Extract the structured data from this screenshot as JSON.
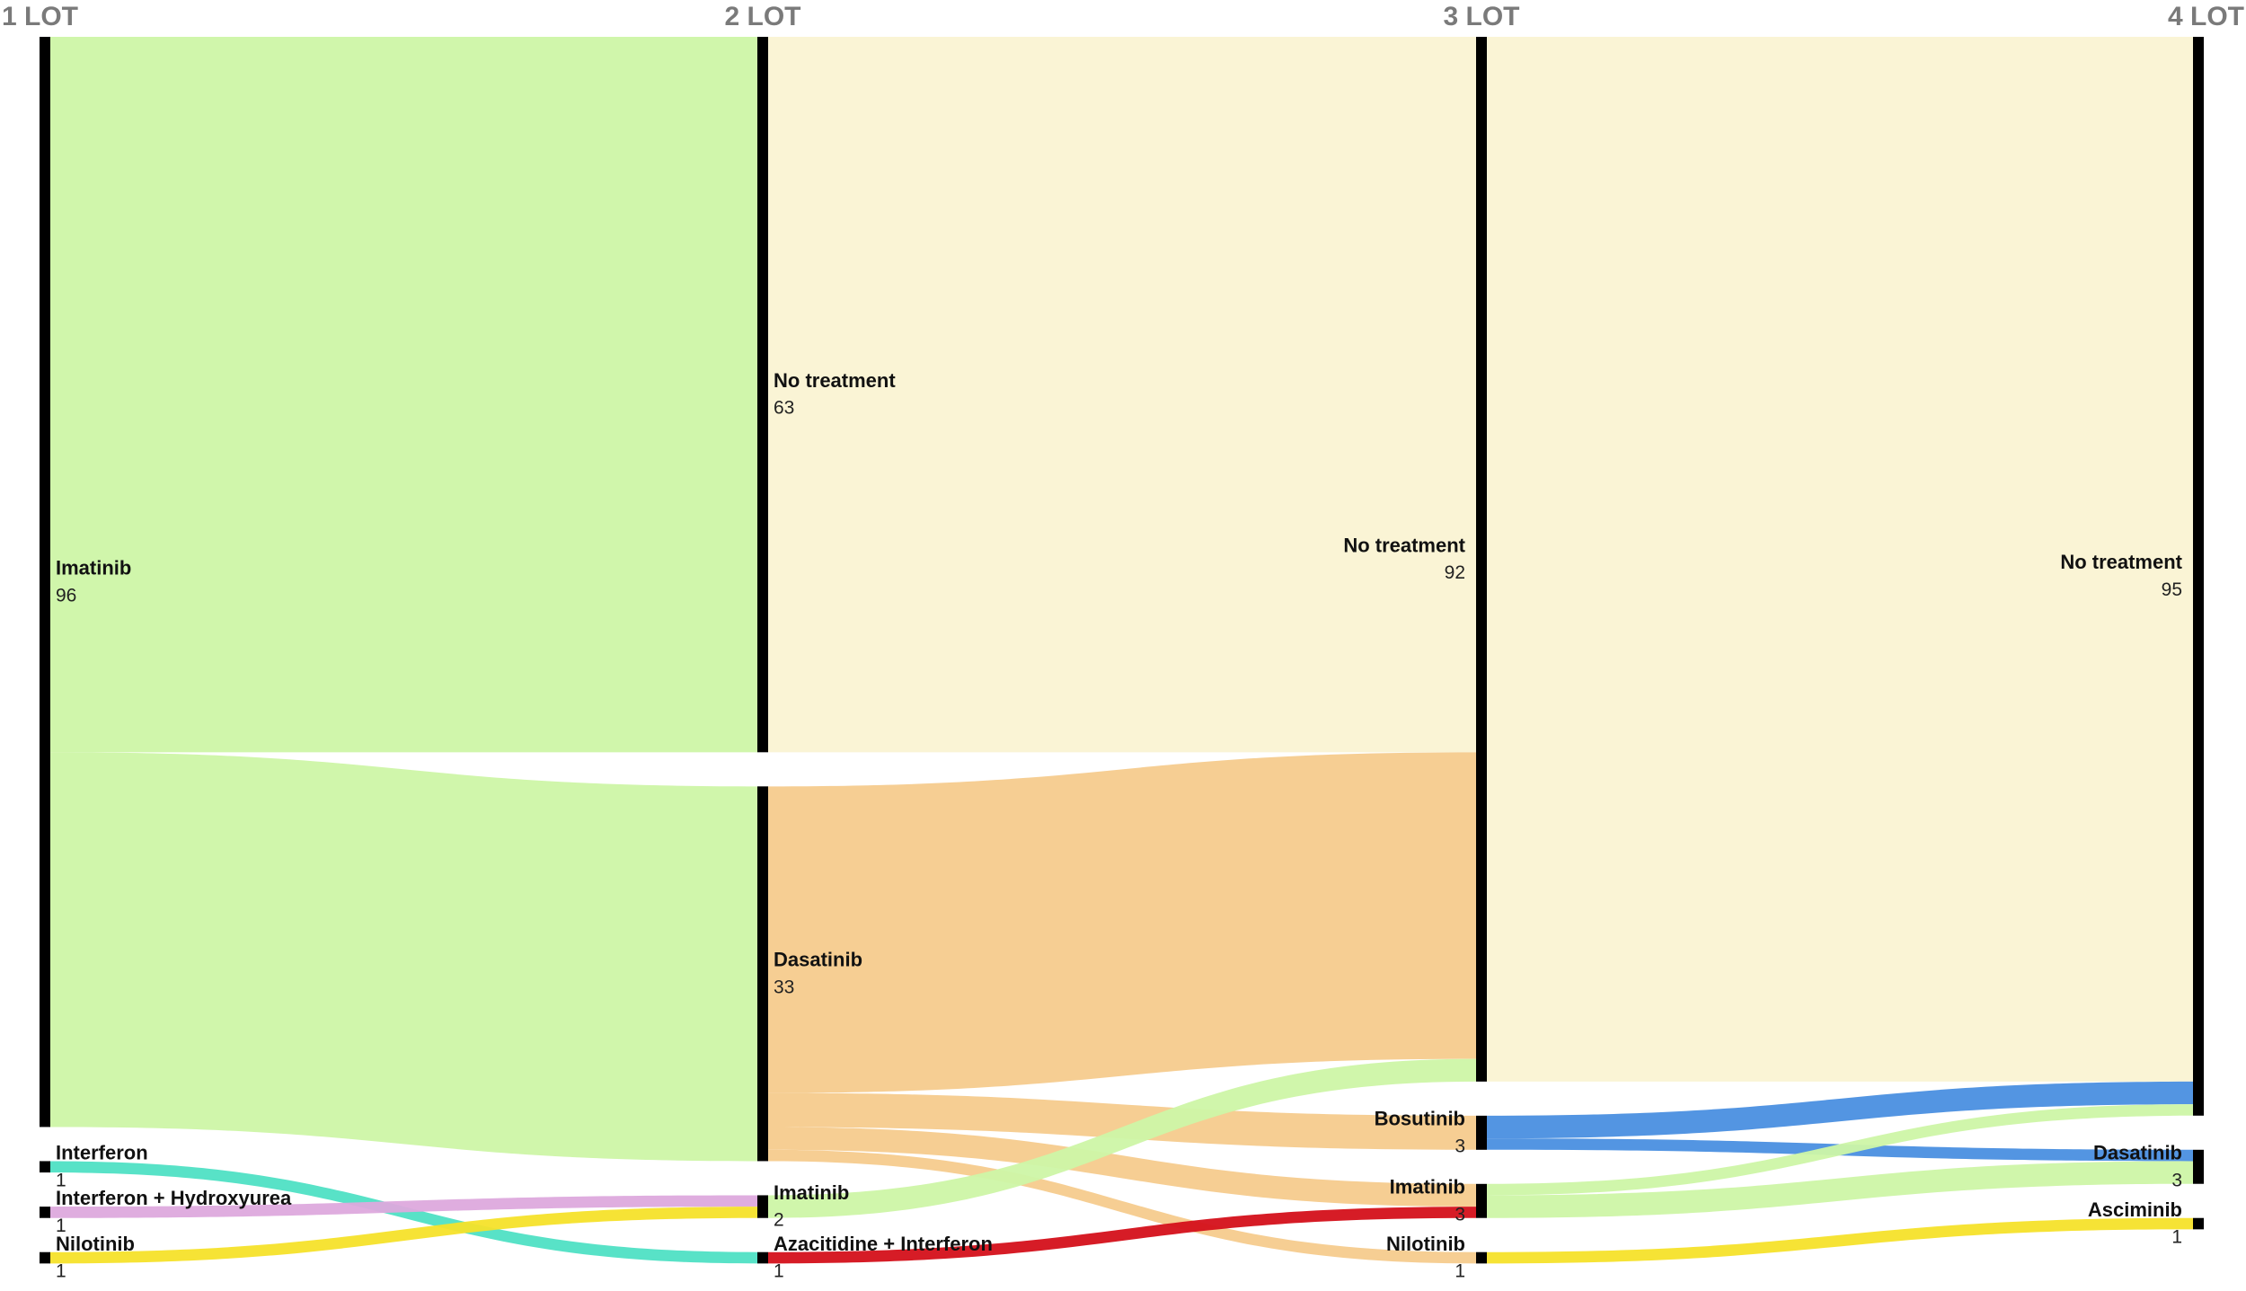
{
  "chart_data": {
    "type": "sankey",
    "columns": [
      {
        "label": "1 LOT",
        "nodes": [
          {
            "name": "Imatinib",
            "value": 96,
            "color": "#cdf5a6",
            "links": [
              {
                "to": "No treatment",
                "value": 63
              },
              {
                "to": "Dasatinib",
                "value": 33
              }
            ]
          },
          {
            "name": "Interferon",
            "value": 1,
            "color": "#4fe0c4",
            "links": [
              {
                "to": "Azacitidine + Interferon",
                "value": 1
              }
            ]
          },
          {
            "name": "Interferon + Hydroxyurea",
            "value": 1,
            "color": "#dda9dd",
            "links": [
              {
                "to": "Imatinib",
                "value": 1
              }
            ]
          },
          {
            "name": "Nilotinib",
            "value": 1,
            "color": "#f5e22a",
            "links": [
              {
                "to": "Imatinib",
                "value": 1
              }
            ]
          }
        ]
      },
      {
        "label": "2 LOT",
        "nodes": [
          {
            "name": "No treatment",
            "value": 63,
            "color": "#faf3d3",
            "links": [
              {
                "to": "No treatment",
                "value": 63
              }
            ]
          },
          {
            "name": "Dasatinib",
            "value": 33,
            "color": "#f6cb8d",
            "links": [
              {
                "to": "No treatment",
                "value": 27
              },
              {
                "to": "Bosutinib",
                "value": 3
              },
              {
                "to": "Imatinib",
                "value": 2
              },
              {
                "to": "Nilotinib",
                "value": 1
              }
            ]
          },
          {
            "name": "Imatinib",
            "value": 2,
            "color": "#cdf5a6",
            "links": [
              {
                "to": "No treatment",
                "value": 2
              }
            ]
          },
          {
            "name": "Azacitidine + Interferon",
            "value": 1,
            "color": "#d4101a",
            "links": [
              {
                "to": "Imatinib",
                "value": 1
              }
            ]
          }
        ]
      },
      {
        "label": "3 LOT",
        "nodes": [
          {
            "name": "No treatment",
            "value": 92,
            "color": "#faf3d3",
            "links": [
              {
                "to": "No treatment",
                "value": 92
              }
            ]
          },
          {
            "name": "Bosutinib",
            "value": 3,
            "color": "#4a8fe0",
            "links": [
              {
                "to": "No treatment",
                "value": 2
              },
              {
                "to": "Dasatinib",
                "value": 1
              }
            ]
          },
          {
            "name": "Imatinib",
            "value": 3,
            "color": "#cdf5a6",
            "links": [
              {
                "to": "No treatment",
                "value": 1
              },
              {
                "to": "Dasatinib",
                "value": 2
              }
            ]
          },
          {
            "name": "Nilotinib",
            "value": 1,
            "color": "#f5e22a",
            "links": [
              {
                "to": "Asciminib",
                "value": 1
              }
            ]
          }
        ]
      },
      {
        "label": "4 LOT",
        "nodes": [
          {
            "name": "No treatment",
            "value": 95
          },
          {
            "name": "Dasatinib",
            "value": 3
          },
          {
            "name": "Asciminib",
            "value": 1
          }
        ]
      }
    ]
  }
}
